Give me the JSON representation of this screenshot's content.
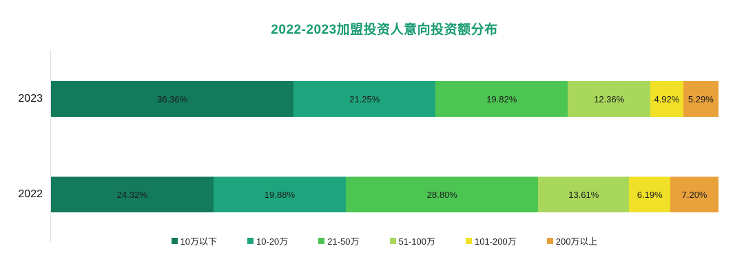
{
  "title": {
    "text": "2022-2023加盟投资人意向投资额分布",
    "color": "#189b72"
  },
  "chart_data": {
    "type": "bar",
    "orientation": "horizontal",
    "stacked": true,
    "title": "2022-2023加盟投资人意向投资额分布",
    "categories": [
      "2023",
      "2022"
    ],
    "series": [
      {
        "name": "10万以下",
        "color": "#137a5b",
        "values": [
          36.36,
          24.32
        ]
      },
      {
        "name": "10-20万",
        "color": "#1fa57e",
        "values": [
          21.25,
          19.88
        ]
      },
      {
        "name": "21-50万",
        "color": "#4dc553",
        "values": [
          19.82,
          28.8
        ]
      },
      {
        "name": "51-100万",
        "color": "#a9d75b",
        "values": [
          12.36,
          13.61
        ]
      },
      {
        "name": "101-200万",
        "color": "#f0e128",
        "values": [
          4.92,
          6.19
        ]
      },
      {
        "name": "200万以上",
        "color": "#e9a23b",
        "values": [
          5.29,
          7.2
        ]
      }
    ],
    "value_labels": [
      [
        "36.36%",
        "21.25%",
        "19.82%",
        "12.36%",
        "4.92%",
        "5.29%"
      ],
      [
        "24.32%",
        "19.88%",
        "28.80%",
        "13.61%",
        "6.19%",
        "7.20%"
      ]
    ],
    "xlabel": "",
    "ylabel": "",
    "xlim": [
      0,
      100
    ],
    "grid": false,
    "legend_position": "bottom"
  }
}
